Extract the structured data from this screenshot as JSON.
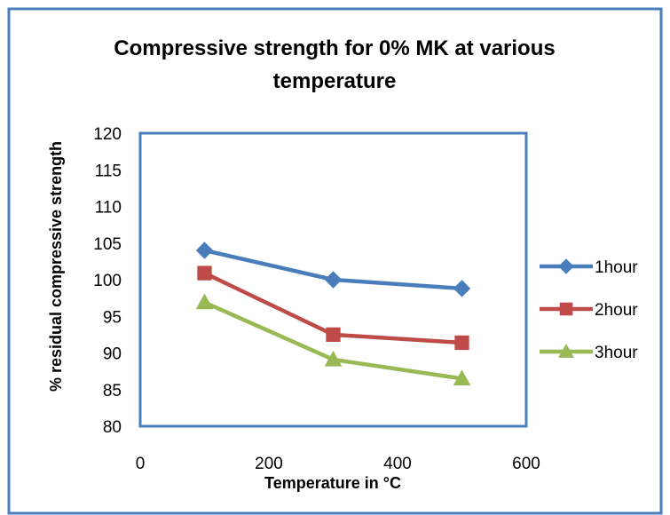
{
  "chart_data": {
    "type": "line",
    "title": [
      "Compressive strength for 0% MK at various",
      "temperature"
    ],
    "xlabel": "Temperature in °C",
    "ylabel": "% residual compressive strength",
    "xlim": [
      0,
      600
    ],
    "ylim": [
      80,
      120
    ],
    "xticks": [
      0,
      200,
      400,
      600
    ],
    "yticks": [
      80,
      85,
      90,
      95,
      100,
      105,
      110,
      115,
      120
    ],
    "grid": false,
    "legend": "right",
    "series": [
      {
        "name": "1hour",
        "color": "#4a7ebb",
        "marker": "diamond",
        "x": [
          100,
          300,
          500
        ],
        "y": [
          104,
          100,
          98.8
        ]
      },
      {
        "name": "2hour",
        "color": "#be4b48",
        "marker": "square",
        "x": [
          100,
          300,
          500
        ],
        "y": [
          100.9,
          92.5,
          91.4
        ]
      },
      {
        "name": "3hour",
        "color": "#98b954",
        "marker": "triangle",
        "x": [
          100,
          300,
          500
        ],
        "y": [
          96.9,
          89.1,
          86.5
        ]
      }
    ],
    "colors": {
      "outer_border": "#4a7ebb",
      "plot_border": "#4a7ebb"
    }
  }
}
